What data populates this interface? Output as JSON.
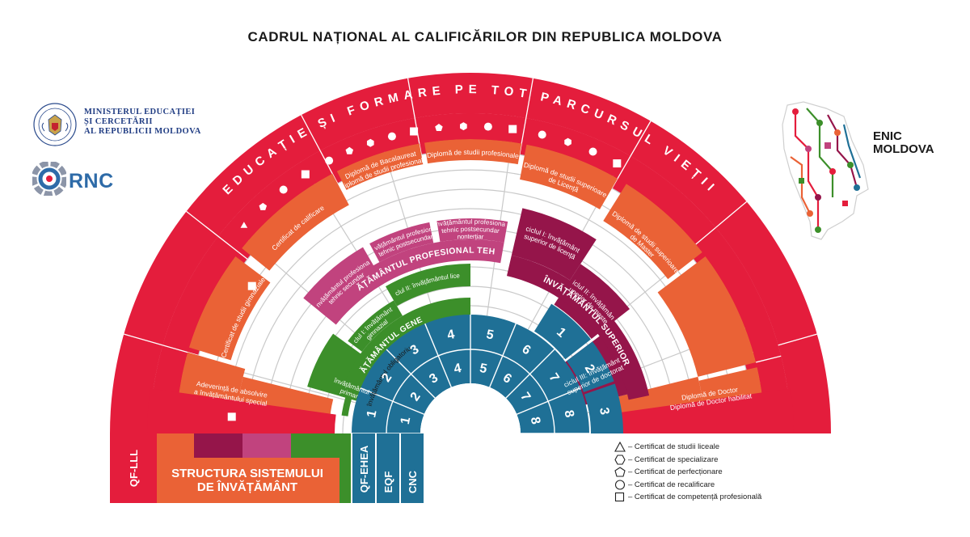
{
  "title": "CADRUL NAȚIONAL AL CALIFICĂRILOR DIN REPUBLICA MOLDOVA",
  "logos": {
    "ministry_lines": [
      "MINISTERUL EDUCAȚIEI",
      "ȘI CERCETĂRII",
      "AL REPUBLICII MOLDOVA"
    ],
    "rnc": "RNC",
    "enic_lines": [
      "ENIC",
      "MOLDOVA"
    ]
  },
  "arc_title": "EDUCAȚIE ȘI FORMARE PE TOT PARCURSUL VIEȚII",
  "colors": {
    "red": "#e41d3c",
    "orange": "#ea6236",
    "maroon": "#95154a",
    "pink": "#c1437e",
    "green": "#3c8f2a",
    "teal": "#1f7096",
    "line": "#c9c9c9"
  },
  "orange_band": [
    {
      "lines": [
        "Adeverință de absolvire",
        "a învățământului special"
      ]
    },
    {
      "lines": [
        "Certificat de studii gimnaziale"
      ]
    },
    {
      "lines": [
        "Certificat de calificare"
      ]
    },
    {
      "lines": [
        "Diplomă de Bacalaureat",
        "Diplomă de studii profesionale"
      ]
    },
    {
      "lines": [
        "Diplomă de studii profesionale"
      ]
    },
    {
      "lines": [
        "Diplomă de studii superioare",
        "de Licență"
      ]
    },
    {
      "lines": [
        "Diplomă de studii superioare",
        "de Master"
      ]
    },
    {
      "lines": [
        "Diplomă de Doctor",
        "Diplomă de Doctor habilitat"
      ]
    }
  ],
  "red_symbols": [
    [
      "square"
    ],
    [
      "square"
    ],
    [
      "triangle",
      "pentagon",
      "circle",
      "square"
    ],
    [
      "circle",
      "pentagon",
      "hexagon",
      "circle",
      "square"
    ],
    [
      "pentagon",
      "hexagon",
      "circle",
      "square"
    ],
    [
      "circle",
      "hexagon",
      "circle",
      "square"
    ]
  ],
  "profesional": {
    "label": "ÎNVĂȚĂMÂNTUL PROFESIONAL TEHNIC",
    "cells": [
      {
        "lines": [
          "Învățământul profesional",
          "tehnic secundar"
        ]
      },
      {
        "lines": [
          "Învățământul profesional",
          "tehnic postsecundar"
        ]
      },
      {
        "lines": [
          "Învățământul profesional",
          "tehnic postsecundar",
          "nonterțiar"
        ]
      }
    ]
  },
  "superior": {
    "label": "ÎNVĂȚĂMÂNTUL SUPERIOR",
    "cells": [
      {
        "lines": [
          "ciclul I: învățământ",
          "superior de licență"
        ]
      },
      {
        "lines": [
          "ciclul II: învățământ",
          "superior de master"
        ]
      },
      {
        "lines": [
          "ciclul III: învățământ",
          "superior de doctorat"
        ]
      }
    ]
  },
  "general": {
    "label": "ÎNVĂȚĂMÂNTUL GENERAL",
    "cells": [
      {
        "lines": [
          "învățământul",
          "primar"
        ]
      },
      {
        "lines": [
          "ciclul I: învățământul",
          "gimnazial"
        ]
      },
      {
        "lines": [
          "ciclul II: învățământul liceal"
        ]
      }
    ],
    "obligatoriu": "învățământul obligatoriu"
  },
  "eqf_levels": [
    "1",
    "2",
    "3",
    "4",
    "5",
    "6",
    "7",
    "8"
  ],
  "cnc_levels": [
    "1",
    "2",
    "3",
    "4",
    "5",
    "6",
    "7",
    "8"
  ],
  "qf_ehea_levels": [
    "1",
    "2",
    "3"
  ],
  "bottom": {
    "qf_lll": "QF-LLL",
    "structura_lines": [
      "STRUCTURA SISTEMULUI",
      "DE ÎNVĂȚĂMÂNT"
    ],
    "qf_ehea": "QF-EHEA",
    "eqf": "EQF",
    "cnc": "CNC"
  },
  "legend": [
    {
      "shape": "triangle",
      "label": "– Certificat de studii liceale"
    },
    {
      "shape": "hexagon",
      "label": "– Certificat de specializare"
    },
    {
      "shape": "pentagon",
      "label": "– Certificat de perfecționare"
    },
    {
      "shape": "circle",
      "label": "– Certificat de recalificare"
    },
    {
      "shape": "square",
      "label": "– Certificat de competență profesională"
    }
  ]
}
